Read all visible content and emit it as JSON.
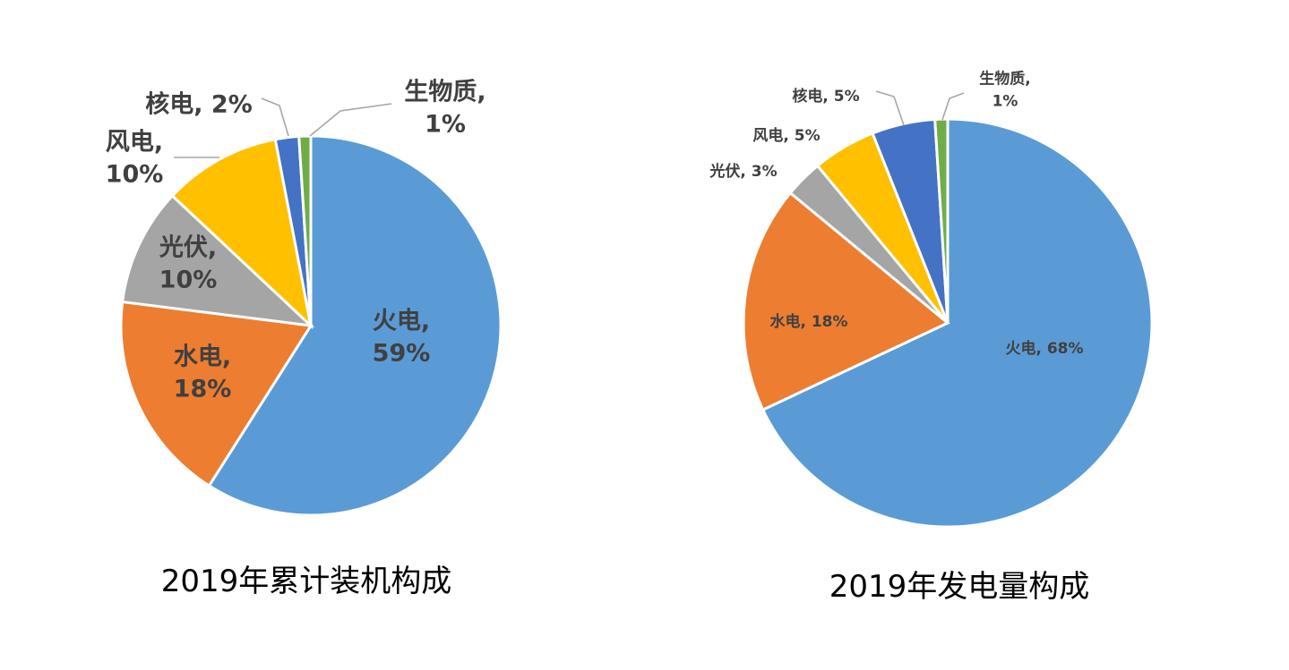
{
  "chart_data": [
    {
      "type": "pie",
      "title": "2019年累计装机构成",
      "slices": [
        {
          "name": "火电",
          "value": 59,
          "label_lines": [
            "火电,",
            "59%"
          ],
          "color": "#5b9bd5"
        },
        {
          "name": "水电",
          "value": 18,
          "label_lines": [
            "水电,",
            "18%"
          ],
          "color": "#ed7d31"
        },
        {
          "name": "光伏",
          "value": 10,
          "label_lines": [
            "光伏,",
            "10%"
          ],
          "color": "#a5a5a5"
        },
        {
          "name": "风电",
          "value": 10,
          "label_lines": [
            "风电,",
            "10%"
          ],
          "color": "#ffc000"
        },
        {
          "name": "核电",
          "value": 2,
          "label_lines": [
            "核电, 2%"
          ],
          "color": "#4472c4"
        },
        {
          "name": "生物质",
          "value": 1,
          "label_lines": [
            "生物质,",
            "1%"
          ],
          "color": "#70ad47"
        }
      ]
    },
    {
      "type": "pie",
      "title": "2019年发电量构成",
      "slices": [
        {
          "name": "火电",
          "value": 68,
          "label_lines": [
            "火电, 68%"
          ],
          "color": "#5b9bd5"
        },
        {
          "name": "水电",
          "value": 18,
          "label_lines": [
            "水电, 18%"
          ],
          "color": "#ed7d31"
        },
        {
          "name": "光伏",
          "value": 3,
          "label_lines": [
            "光伏, 3%"
          ],
          "color": "#a5a5a5"
        },
        {
          "name": "风电",
          "value": 5,
          "label_lines": [
            "风电, 5%"
          ],
          "color": "#ffc000"
        },
        {
          "name": "核电",
          "value": 5,
          "label_lines": [
            "核电, 5%"
          ],
          "color": "#4472c4"
        },
        {
          "name": "生物质",
          "value": 1,
          "label_lines": [
            "生物质,",
            "1%"
          ],
          "color": "#70ad47"
        }
      ]
    }
  ]
}
